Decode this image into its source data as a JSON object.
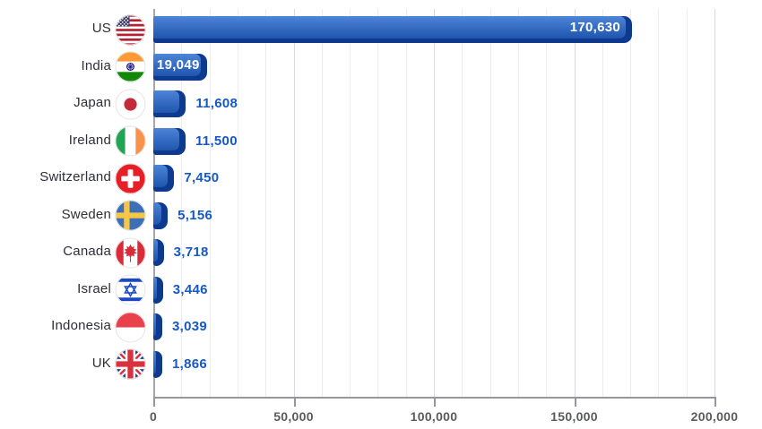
{
  "chart_data": {
    "type": "bar",
    "orientation": "horizontal",
    "title": "",
    "xlabel": "",
    "ylabel": "",
    "xlim": [
      0,
      200000
    ],
    "grid": "vertical, minor every 10000, major every 50000",
    "legend": "none",
    "categories": [
      "US",
      "India",
      "Japan",
      "Ireland",
      "Switzerland",
      "Sweden",
      "Canada",
      "Israel",
      "Indonesia",
      "UK"
    ],
    "values": [
      170630,
      19049,
      11608,
      11500,
      7450,
      5156,
      3718,
      3446,
      3039,
      1866
    ],
    "rows": [
      {
        "label": "US",
        "flag": "us",
        "value": 170630,
        "display": "170,630",
        "value_position": "inside"
      },
      {
        "label": "India",
        "flag": "india",
        "value": 19049,
        "display": "19,049",
        "value_position": "inside"
      },
      {
        "label": "Japan",
        "flag": "japan",
        "value": 11608,
        "display": "11,608",
        "value_position": "outside"
      },
      {
        "label": "Ireland",
        "flag": "ireland",
        "value": 11500,
        "display": "11,500",
        "value_position": "outside"
      },
      {
        "label": "Switzerland",
        "flag": "switzerland",
        "value": 7450,
        "display": "7,450",
        "value_position": "outside"
      },
      {
        "label": "Sweden",
        "flag": "sweden",
        "value": 5156,
        "display": "5,156",
        "value_position": "outside"
      },
      {
        "label": "Canada",
        "flag": "canada",
        "value": 3718,
        "display": "3,718",
        "value_position": "outside"
      },
      {
        "label": "Israel",
        "flag": "israel",
        "value": 3446,
        "display": "3,446",
        "value_position": "outside"
      },
      {
        "label": "Indonesia",
        "flag": "indonesia",
        "value": 3039,
        "display": "3,039",
        "value_position": "outside"
      },
      {
        "label": "UK",
        "flag": "uk",
        "value": 1866,
        "display": "1,866",
        "value_position": "outside"
      }
    ],
    "x_ticks": [
      {
        "value": 0,
        "label": "0"
      },
      {
        "value": 50000,
        "label": "50,000"
      },
      {
        "value": 100000,
        "label": "100,000"
      },
      {
        "value": 150000,
        "label": "150,000"
      },
      {
        "value": 200000,
        "label": "200,000"
      }
    ],
    "minor_tick_step": 10000,
    "colors": {
      "bar_cap_dark": "#0d3a8e",
      "bar_gradient_top": "#4d85d8",
      "bar_gradient_bottom": "#1f55ae",
      "value_text_outside": "#1659c5",
      "value_text_inside": "#ffffff",
      "category_text": "#2e2f37",
      "axis_text": "#5a5b61",
      "grid_minor": "#ededf0",
      "grid_major": "#d9d9de",
      "axis_line": "#96969e",
      "background": "#ffffff"
    }
  }
}
